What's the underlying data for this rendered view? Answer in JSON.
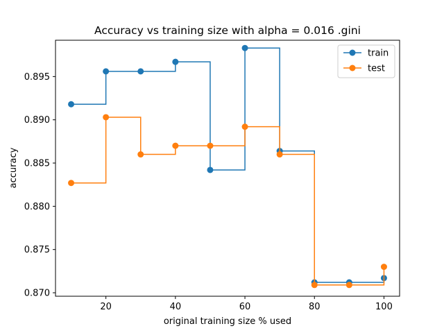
{
  "chart_data": {
    "type": "line",
    "drawstyle": "steps-post",
    "title": "Accuracy vs training size with alpha = 0.016 .gini",
    "xlabel": "original training size % used",
    "ylabel": "accuracy",
    "xlim": [
      5.5,
      104.5
    ],
    "ylim": [
      0.8696,
      0.8992
    ],
    "xticks": [
      20,
      40,
      60,
      80,
      100
    ],
    "yticks": [
      0.87,
      0.875,
      0.88,
      0.885,
      0.89,
      0.895
    ],
    "ytick_labels": [
      "0.870",
      "0.875",
      "0.880",
      "0.885",
      "0.890",
      "0.895"
    ],
    "grid": false,
    "legend_position": "top-right",
    "x": [
      10,
      20,
      30,
      40,
      50,
      60,
      70,
      80,
      90,
      100
    ],
    "series": [
      {
        "name": "train",
        "color": "#1f77b4",
        "values": [
          0.8918,
          0.8956,
          0.8956,
          0.8967,
          0.8842,
          0.8983,
          0.8864,
          0.8712,
          0.8712,
          0.8717
        ]
      },
      {
        "name": "test",
        "color": "#ff7f0e",
        "values": [
          0.8827,
          0.8903,
          0.886,
          0.887,
          0.887,
          0.8892,
          0.886,
          0.8709,
          0.8709,
          0.873
        ]
      }
    ]
  }
}
